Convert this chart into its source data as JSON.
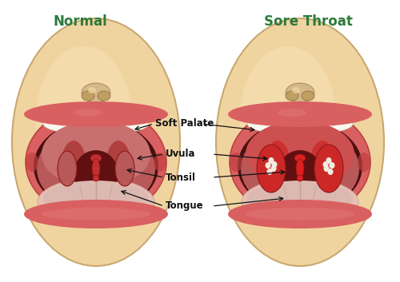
{
  "title_left": "Normal",
  "title_right": "Sore Throat",
  "title_color": "#2d7a3a",
  "title_fontsize": 12,
  "bg_color": "#ffffff",
  "label_color": "#111111",
  "label_fontsize": 8.5,
  "labels": [
    "Soft Palate",
    "Uvula",
    "Tonsil",
    "Tongue"
  ],
  "arrow_color": "#111111",
  "face_fill": "#f0d4a0",
  "face_edge": "#c8a870",
  "skin_light": "#f5e0b8",
  "lip_pink": "#d96060",
  "lip_dark": "#c04040",
  "teeth_color": "#f8f8f0",
  "inner_pink": "#d08080",
  "inner_dark": "#a05050",
  "palate_pink": "#c87070",
  "uvula_red": "#b03030",
  "throat_dark": "#601010",
  "tongue_light": "#e8c0b8",
  "tongue_mid": "#d4a898",
  "tonsil_normal": "#c06860",
  "tonsil_sore": "#cc3333",
  "spot_color": "#f0ede0",
  "nose_color": "#d4b888",
  "nose_edge": "#a08050"
}
